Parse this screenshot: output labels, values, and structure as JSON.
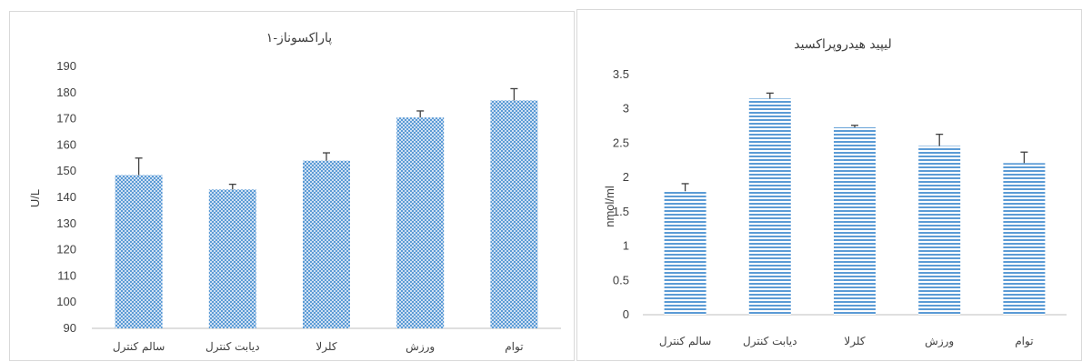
{
  "colors": {
    "bar": "#5b9bd5",
    "error_bar": "#404040",
    "axis": "#bfbfbf",
    "text": "#404040"
  },
  "chart_data": [
    {
      "type": "bar",
      "title": "پاراکسوناز-۱",
      "xlabel": "",
      "ylabel": "U/L",
      "categories": [
        "سالم کنترل",
        "دیابت کنترل",
        "کلرلا",
        "ورزش",
        "توام"
      ],
      "values": [
        148.5,
        143,
        154,
        170.5,
        177
      ],
      "error": [
        6.5,
        2,
        3,
        2.5,
        4.5
      ],
      "ylim": [
        90,
        190
      ],
      "yticks": [
        "90",
        "100",
        "110",
        "120",
        "130",
        "140",
        "150",
        "160",
        "170",
        "180",
        "190"
      ],
      "fill": "dotted",
      "grid": false
    },
    {
      "type": "bar",
      "title": "لیپید هیدروپراکسید",
      "xlabel": "",
      "ylabel": "nmol/ml",
      "categories": [
        "سالم کنترل",
        "دیابت کنترل",
        "کلرلا",
        "ورزش",
        "توام"
      ],
      "values": [
        1.8,
        3.15,
        2.73,
        2.46,
        2.21
      ],
      "error": [
        0.11,
        0.08,
        0.03,
        0.17,
        0.16
      ],
      "ylim": [
        0,
        3.5
      ],
      "yticks": [
        "0",
        "0.5",
        "1",
        "1.5",
        "2",
        "2.5",
        "3",
        "3.5"
      ],
      "fill": "horizontal-lines",
      "grid": false
    }
  ]
}
